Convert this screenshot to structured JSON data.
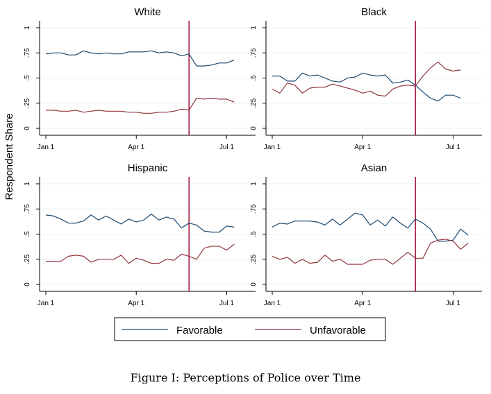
{
  "chart_data": {
    "type": "line",
    "ylabel": "Respondent Share",
    "caption": "Figure I: Perceptions of Police over Time",
    "x_ticks": [
      "Jan 1",
      "Apr 1",
      "Jul 1"
    ],
    "x_range": [
      0,
      27
    ],
    "x_tick_positions": [
      0,
      12,
      24
    ],
    "y_ticks": [
      "0",
      ".25",
      ".5",
      ".75",
      "1"
    ],
    "y_tick_values": [
      0,
      0.25,
      0.5,
      0.75,
      1
    ],
    "ylim": [
      0,
      1
    ],
    "event_line_x": 19,
    "grid": true,
    "legend_position": "bottom",
    "colors": {
      "favorable": "#1a476f",
      "unfavorable": "#90353b",
      "event": "#a3113a"
    },
    "legend": [
      {
        "key": "favorable",
        "label": "Favorable"
      },
      {
        "key": "unfavorable",
        "label": "Unfavorable"
      }
    ],
    "panels": [
      {
        "title": "White",
        "favorable": [
          0.74,
          0.75,
          0.75,
          0.73,
          0.73,
          0.77,
          0.75,
          0.74,
          0.75,
          0.74,
          0.74,
          0.76,
          0.76,
          0.76,
          0.77,
          0.75,
          0.76,
          0.75,
          0.72,
          0.74,
          0.62,
          0.62,
          0.63,
          0.65,
          0.65,
          0.68
        ],
        "unfavorable": [
          0.18,
          0.18,
          0.17,
          0.17,
          0.18,
          0.16,
          0.17,
          0.18,
          0.17,
          0.17,
          0.17,
          0.16,
          0.16,
          0.15,
          0.15,
          0.16,
          0.16,
          0.17,
          0.19,
          0.18,
          0.3,
          0.29,
          0.3,
          0.29,
          0.29,
          0.26
        ]
      },
      {
        "title": "Black",
        "favorable": [
          0.52,
          0.52,
          0.47,
          0.47,
          0.55,
          0.52,
          0.53,
          0.5,
          0.47,
          0.46,
          0.5,
          0.51,
          0.55,
          0.53,
          0.52,
          0.53,
          0.45,
          0.46,
          0.48,
          0.43,
          0.36,
          0.3,
          0.27,
          0.33,
          0.33,
          0.3
        ],
        "unfavorable": [
          0.39,
          0.35,
          0.45,
          0.43,
          0.35,
          0.4,
          0.41,
          0.41,
          0.44,
          0.42,
          0.4,
          0.38,
          0.35,
          0.37,
          0.33,
          0.32,
          0.39,
          0.42,
          0.43,
          0.42,
          0.52,
          0.6,
          0.66,
          0.59,
          0.57,
          0.58
        ]
      },
      {
        "title": "Hispanic",
        "favorable": [
          0.69,
          0.68,
          0.65,
          0.61,
          0.61,
          0.63,
          0.69,
          0.64,
          0.68,
          0.64,
          0.6,
          0.65,
          0.62,
          0.64,
          0.7,
          0.64,
          0.67,
          0.65,
          0.56,
          0.61,
          0.59,
          0.53,
          0.52,
          0.52,
          0.58,
          0.57
        ],
        "unfavorable": [
          0.23,
          0.23,
          0.23,
          0.28,
          0.29,
          0.28,
          0.22,
          0.25,
          0.25,
          0.25,
          0.29,
          0.21,
          0.26,
          0.24,
          0.21,
          0.21,
          0.25,
          0.24,
          0.3,
          0.28,
          0.25,
          0.36,
          0.38,
          0.38,
          0.34,
          0.4
        ]
      },
      {
        "title": "Asian",
        "favorable": [
          0.57,
          0.61,
          0.6,
          0.63,
          0.63,
          0.63,
          0.62,
          0.59,
          0.65,
          0.59,
          0.65,
          0.71,
          0.69,
          0.59,
          0.64,
          0.58,
          0.67,
          0.61,
          0.56,
          0.65,
          0.61,
          0.55,
          0.43,
          0.43,
          0.44,
          0.55,
          0.49
        ],
        "unfavorable": [
          0.28,
          0.25,
          0.27,
          0.21,
          0.25,
          0.21,
          0.22,
          0.29,
          0.23,
          0.25,
          0.2,
          0.2,
          0.2,
          0.24,
          0.25,
          0.25,
          0.2,
          0.26,
          0.32,
          0.26,
          0.26,
          0.41,
          0.44,
          0.45,
          0.43,
          0.35,
          0.41
        ]
      }
    ]
  }
}
